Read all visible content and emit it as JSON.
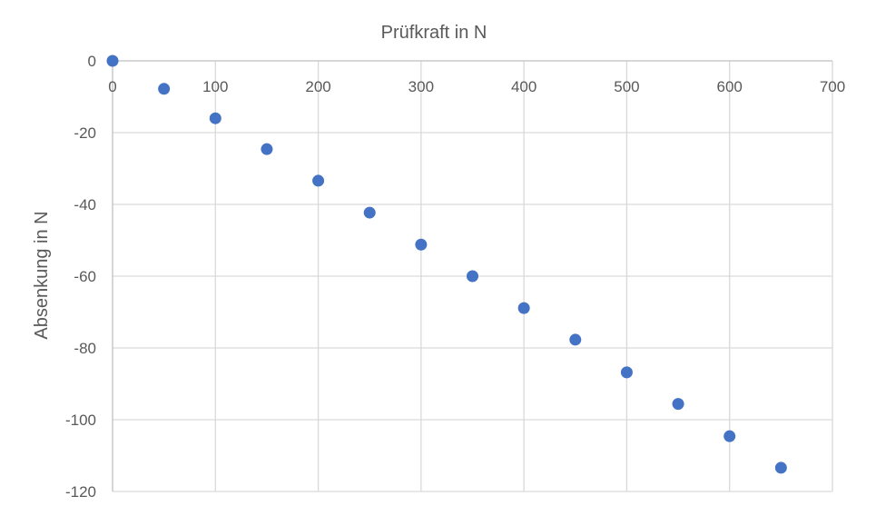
{
  "chart_data": {
    "type": "scatter",
    "title": "Prüfkraft in N",
    "xlabel": "",
    "ylabel": "Absenkung in N",
    "xlim": [
      0,
      700
    ],
    "ylim": [
      -120,
      0
    ],
    "x_ticks": [
      0,
      100,
      200,
      300,
      400,
      500,
      600,
      700
    ],
    "y_ticks": [
      0,
      -20,
      -40,
      -60,
      -80,
      -100,
      -120
    ],
    "x_tick_labels": [
      "0",
      "100",
      "200",
      "300",
      "400",
      "500",
      "600",
      "700"
    ],
    "y_tick_labels": [
      "0",
      "-20",
      "-40",
      "-60",
      "-80",
      "-100",
      "-120"
    ],
    "grid": true,
    "legend": "none",
    "x_axis_position": "top",
    "series": [
      {
        "color": "#4472c4",
        "points": [
          {
            "x": 0,
            "y": 0
          },
          {
            "x": 50,
            "y": -7.8
          },
          {
            "x": 100,
            "y": -16
          },
          {
            "x": 150,
            "y": -24.6
          },
          {
            "x": 200,
            "y": -33.4
          },
          {
            "x": 250,
            "y": -42.3
          },
          {
            "x": 300,
            "y": -51.2
          },
          {
            "x": 350,
            "y": -60
          },
          {
            "x": 400,
            "y": -68.9
          },
          {
            "x": 450,
            "y": -77.7
          },
          {
            "x": 500,
            "y": -86.8
          },
          {
            "x": 550,
            "y": -95.6
          },
          {
            "x": 600,
            "y": -104.6
          },
          {
            "x": 650,
            "y": -113.4
          }
        ]
      }
    ]
  }
}
